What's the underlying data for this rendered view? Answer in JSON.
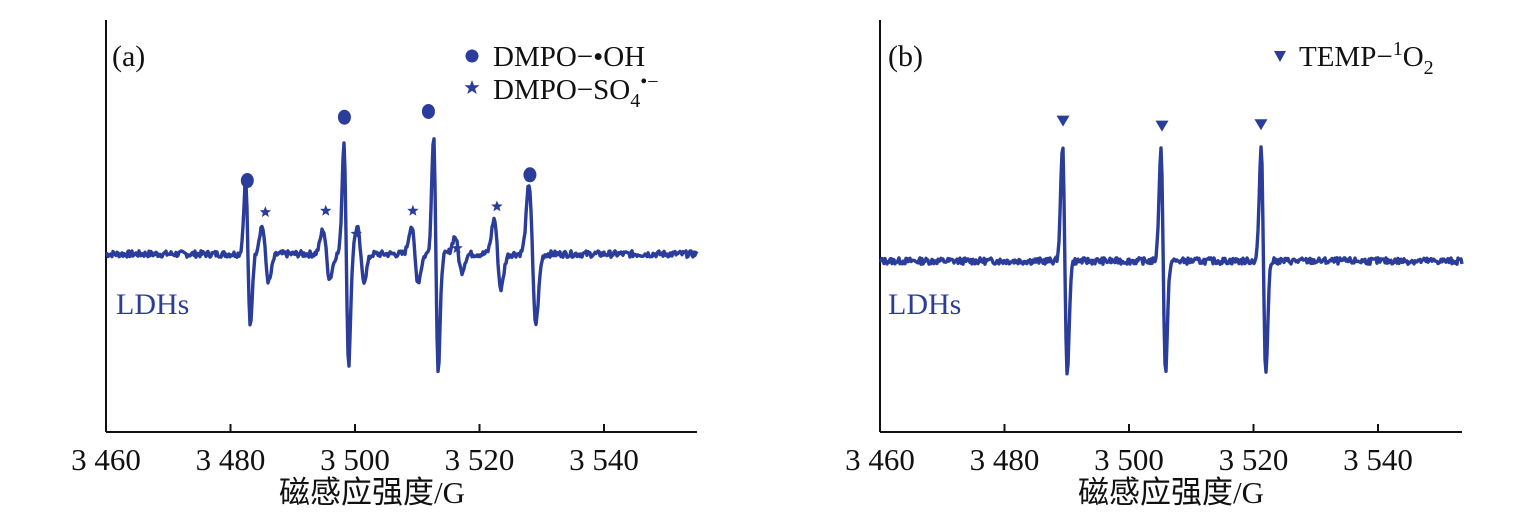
{
  "chart_data": [
    {
      "panel": "(a)",
      "type": "line",
      "xlabel": "磁感应强度/G",
      "xlim": [
        3460,
        3554
      ],
      "x_ticks": [
        3460,
        3480,
        3500,
        3520,
        3540
      ],
      "x_tick_labels": [
        "3 460",
        "3 480",
        "3 500",
        "3 520",
        "3 540"
      ],
      "ylabel": "",
      "sample_label": "LDHs",
      "series_color": "#2b3d9a",
      "legend": [
        {
          "marker": "circle",
          "name": "DMPO−•OH",
          "label_main": "DMPO−•OH"
        },
        {
          "marker": "star",
          "name": "DMPO−SO4•−",
          "label_main": "DMPO−SO",
          "label_sub": "4",
          "label_sup": "•−"
        }
      ],
      "peaks": [
        {
          "x": 3482.8,
          "amplitude": 1.05,
          "species": "DMPO−•OH"
        },
        {
          "x": 3485.6,
          "amplitude": 0.4,
          "species": "DMPO−SO4•−"
        },
        {
          "x": 3495.4,
          "amplitude": 0.35,
          "species": "DMPO−SO4•−"
        },
        {
          "x": 3498.6,
          "amplitude": 1.6,
          "species": "DMPO−•OH"
        },
        {
          "x": 3500.9,
          "amplitude": 0.38,
          "species": "DMPO−SO4•−"
        },
        {
          "x": 3509.6,
          "amplitude": 0.4,
          "species": "DMPO−SO4•−"
        },
        {
          "x": 3513.0,
          "amplitude": 1.7,
          "species": "DMPO−•OH"
        },
        {
          "x": 3516.6,
          "amplitude": 0.25,
          "species": "DMPO−SO4•−"
        },
        {
          "x": 3522.9,
          "amplitude": 0.5,
          "species": "DMPO−SO4•−"
        },
        {
          "x": 3528.5,
          "amplitude": 1.0,
          "species": "DMPO−•OH"
        }
      ],
      "markers": [
        {
          "x": 3482.7,
          "y": 1.02,
          "species": "DMPO−•OH"
        },
        {
          "x": 3485.6,
          "y": 0.58,
          "species": "DMPO−SO4•−"
        },
        {
          "x": 3495.3,
          "y": 0.6,
          "species": "DMPO−SO4•−"
        },
        {
          "x": 3498.3,
          "y": 1.9,
          "species": "DMPO−•OH"
        },
        {
          "x": 3500.2,
          "y": 0.28,
          "species": "DMPO−SO4•−"
        },
        {
          "x": 3509.3,
          "y": 0.6,
          "species": "DMPO−SO4•−"
        },
        {
          "x": 3511.8,
          "y": 1.98,
          "species": "DMPO−•OH"
        },
        {
          "x": 3516.4,
          "y": 0.08,
          "species": "DMPO−SO4•−"
        },
        {
          "x": 3522.8,
          "y": 0.66,
          "species": "DMPO−SO4•−"
        },
        {
          "x": 3528.1,
          "y": 1.1,
          "species": "DMPO−•OH"
        }
      ]
    },
    {
      "panel": "(b)",
      "type": "line",
      "xlabel": "磁感应强度/G",
      "xlim": [
        3460,
        3554
      ],
      "x_ticks": [
        3460,
        3480,
        3500,
        3520,
        3540
      ],
      "x_tick_labels": [
        "3 460",
        "3 480",
        "3 500",
        "3 520",
        "3 540"
      ],
      "ylabel": "",
      "sample_label": "LDHs",
      "series_color": "#2b3d9a",
      "legend": [
        {
          "marker": "triangle-down",
          "name": "TEMP−1O2",
          "label_main": "TEMP−",
          "label_sup": "1",
          "label_post": "O",
          "label_sub": "2"
        }
      ],
      "peaks": [
        {
          "x": 3489.7,
          "amplitude": 1.65,
          "species": "TEMP−1O2"
        },
        {
          "x": 3505.5,
          "amplitude": 1.6,
          "species": "TEMP−1O2"
        },
        {
          "x": 3521.6,
          "amplitude": 1.6,
          "species": "TEMP−1O2"
        }
      ],
      "markers": [
        {
          "x": 3489.4,
          "y": 1.95,
          "species": "TEMP−1O2"
        },
        {
          "x": 3505.3,
          "y": 1.88,
          "species": "TEMP−1O2"
        },
        {
          "x": 3521.2,
          "y": 1.9,
          "species": "TEMP−1O2"
        }
      ]
    }
  ]
}
